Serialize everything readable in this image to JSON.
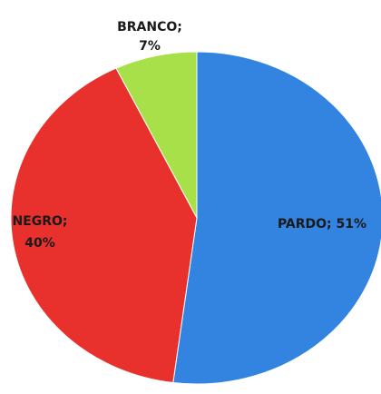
{
  "chart_data": {
    "type": "pie",
    "slices": [
      {
        "name": "PARDO",
        "value": 51,
        "label_lines": [
          "PARDO; 51%"
        ],
        "color": "#3384e0"
      },
      {
        "name": "NEGRO",
        "value": 40,
        "label_lines": [
          "NEGRO;",
          "40%"
        ],
        "color": "#e8312c"
      },
      {
        "name": "BRANCO",
        "value": 7,
        "label_lines": [
          "BRANCO;",
          "7%"
        ],
        "color": "#a8e04a"
      }
    ],
    "start_angle_deg": 0,
    "direction": "clockwise",
    "legend": "none"
  }
}
